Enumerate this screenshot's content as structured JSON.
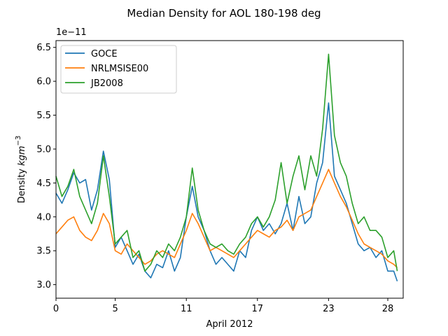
{
  "chart_data": {
    "type": "line",
    "title": "Median Density for AOL 180-198 deg",
    "xlabel": "April 2012",
    "ylabel": "Density",
    "ylabel_unit": "kgm",
    "ylabel_exp": "−3",
    "y_multiplier": "1e−11",
    "xlim": [
      0,
      29.3
    ],
    "ylim": [
      2.8,
      6.6
    ],
    "grid": false,
    "legend_position": "top-left",
    "x_ticks": [
      0,
      5,
      11,
      17,
      23,
      28
    ],
    "x_tick_labels": [
      "0",
      "5",
      "11",
      "17",
      "23",
      "28"
    ],
    "y_ticks": [
      3.0,
      3.5,
      4.0,
      4.5,
      5.0,
      5.5,
      6.0,
      6.5
    ],
    "y_tick_labels": [
      "3.0",
      "3.5",
      "4.0",
      "4.5",
      "5.0",
      "5.5",
      "6.0",
      "6.5"
    ],
    "series": [
      {
        "name": "GOCE",
        "color": "#1f77b4",
        "points": [
          [
            0,
            4.35
          ],
          [
            0.5,
            4.2
          ],
          [
            1,
            4.4
          ],
          [
            1.5,
            4.65
          ],
          [
            2,
            4.5
          ],
          [
            2.5,
            4.55
          ],
          [
            3,
            4.1
          ],
          [
            3.5,
            4.4
          ],
          [
            4.0,
            4.97
          ],
          [
            4.5,
            4.55
          ],
          [
            5.0,
            3.55
          ],
          [
            5.5,
            3.7
          ],
          [
            6.0,
            3.5
          ],
          [
            6.5,
            3.3
          ],
          [
            7,
            3.45
          ],
          [
            7.5,
            3.2
          ],
          [
            8,
            3.1
          ],
          [
            8.5,
            3.3
          ],
          [
            9,
            3.25
          ],
          [
            9.5,
            3.5
          ],
          [
            10,
            3.2
          ],
          [
            10.5,
            3.4
          ],
          [
            11,
            4.0
          ],
          [
            11.5,
            4.45
          ],
          [
            12,
            4.0
          ],
          [
            12.5,
            3.8
          ],
          [
            13,
            3.5
          ],
          [
            13.5,
            3.3
          ],
          [
            14,
            3.4
          ],
          [
            14.5,
            3.3
          ],
          [
            15,
            3.2
          ],
          [
            15.5,
            3.5
          ],
          [
            16,
            3.4
          ],
          [
            16.5,
            3.8
          ],
          [
            17,
            4.0
          ],
          [
            17.5,
            3.8
          ],
          [
            18,
            3.9
          ],
          [
            18.5,
            3.75
          ],
          [
            19,
            3.9
          ],
          [
            19.5,
            4.2
          ],
          [
            20,
            3.8
          ],
          [
            20.5,
            4.3
          ],
          [
            21,
            3.9
          ],
          [
            21.5,
            4.0
          ],
          [
            22,
            4.5
          ],
          [
            22.5,
            4.8
          ],
          [
            23,
            5.68
          ],
          [
            23.5,
            4.6
          ],
          [
            24,
            4.4
          ],
          [
            24.5,
            4.2
          ],
          [
            25,
            3.9
          ],
          [
            25.5,
            3.6
          ],
          [
            26,
            3.5
          ],
          [
            26.5,
            3.55
          ],
          [
            27,
            3.4
          ],
          [
            27.5,
            3.5
          ],
          [
            28,
            3.2
          ],
          [
            28.5,
            3.2
          ],
          [
            28.8,
            3.05
          ]
        ]
      },
      {
        "name": "NRLMSISE00",
        "color": "#ff7f0e",
        "points": [
          [
            0,
            3.75
          ],
          [
            0.5,
            3.85
          ],
          [
            1,
            3.95
          ],
          [
            1.5,
            4.0
          ],
          [
            2,
            3.8
          ],
          [
            2.5,
            3.7
          ],
          [
            3,
            3.65
          ],
          [
            3.5,
            3.8
          ],
          [
            4,
            4.05
          ],
          [
            4.5,
            3.9
          ],
          [
            5,
            3.5
          ],
          [
            5.5,
            3.45
          ],
          [
            6,
            3.6
          ],
          [
            6.5,
            3.5
          ],
          [
            7,
            3.4
          ],
          [
            7.5,
            3.3
          ],
          [
            8,
            3.35
          ],
          [
            8.5,
            3.45
          ],
          [
            9,
            3.5
          ],
          [
            9.5,
            3.45
          ],
          [
            10,
            3.4
          ],
          [
            10.5,
            3.6
          ],
          [
            11,
            3.8
          ],
          [
            11.5,
            4.05
          ],
          [
            12,
            3.9
          ],
          [
            12.5,
            3.7
          ],
          [
            13,
            3.5
          ],
          [
            13.5,
            3.55
          ],
          [
            14,
            3.5
          ],
          [
            14.5,
            3.45
          ],
          [
            15,
            3.4
          ],
          [
            15.5,
            3.5
          ],
          [
            16,
            3.6
          ],
          [
            16.5,
            3.7
          ],
          [
            17,
            3.8
          ],
          [
            17.5,
            3.75
          ],
          [
            18,
            3.7
          ],
          [
            18.5,
            3.8
          ],
          [
            19,
            3.85
          ],
          [
            19.5,
            3.95
          ],
          [
            20,
            3.8
          ],
          [
            20.5,
            4.0
          ],
          [
            21,
            4.05
          ],
          [
            21.5,
            4.1
          ],
          [
            22,
            4.3
          ],
          [
            22.5,
            4.5
          ],
          [
            23,
            4.7
          ],
          [
            23.5,
            4.5
          ],
          [
            24,
            4.3
          ],
          [
            24.5,
            4.15
          ],
          [
            25,
            3.95
          ],
          [
            25.5,
            3.75
          ],
          [
            26,
            3.6
          ],
          [
            26.5,
            3.55
          ],
          [
            27,
            3.5
          ],
          [
            27.5,
            3.45
          ],
          [
            28,
            3.35
          ],
          [
            28.5,
            3.3
          ],
          [
            28.8,
            3.25
          ]
        ]
      },
      {
        "name": "JB2008",
        "color": "#2ca02c",
        "points": [
          [
            0,
            4.6
          ],
          [
            0.5,
            4.3
          ],
          [
            1,
            4.45
          ],
          [
            1.5,
            4.7
          ],
          [
            2,
            4.3
          ],
          [
            2.5,
            4.1
          ],
          [
            3,
            3.9
          ],
          [
            3.5,
            4.2
          ],
          [
            4,
            4.9
          ],
          [
            4.5,
            4.3
          ],
          [
            5,
            3.6
          ],
          [
            5.5,
            3.7
          ],
          [
            6,
            3.8
          ],
          [
            6.5,
            3.4
          ],
          [
            7,
            3.5
          ],
          [
            7.5,
            3.2
          ],
          [
            8,
            3.3
          ],
          [
            8.5,
            3.5
          ],
          [
            9,
            3.4
          ],
          [
            9.5,
            3.6
          ],
          [
            10,
            3.5
          ],
          [
            10.5,
            3.7
          ],
          [
            11,
            4.0
          ],
          [
            11.5,
            4.72
          ],
          [
            12,
            4.1
          ],
          [
            12.5,
            3.8
          ],
          [
            13,
            3.6
          ],
          [
            13.5,
            3.55
          ],
          [
            14,
            3.6
          ],
          [
            14.5,
            3.5
          ],
          [
            15,
            3.45
          ],
          [
            15.5,
            3.6
          ],
          [
            16,
            3.7
          ],
          [
            16.5,
            3.9
          ],
          [
            17,
            4.0
          ],
          [
            17.5,
            3.85
          ],
          [
            18,
            4.0
          ],
          [
            18.5,
            4.25
          ],
          [
            19,
            4.8
          ],
          [
            19.5,
            4.2
          ],
          [
            20,
            4.6
          ],
          [
            20.5,
            4.9
          ],
          [
            21,
            4.4
          ],
          [
            21.5,
            4.9
          ],
          [
            22,
            4.6
          ],
          [
            22.5,
            5.3
          ],
          [
            23,
            6.4
          ],
          [
            23.5,
            5.2
          ],
          [
            24,
            4.8
          ],
          [
            24.5,
            4.6
          ],
          [
            25,
            4.2
          ],
          [
            25.5,
            3.9
          ],
          [
            26,
            4.0
          ],
          [
            26.5,
            3.8
          ],
          [
            27,
            3.8
          ],
          [
            27.5,
            3.7
          ],
          [
            28,
            3.4
          ],
          [
            28.5,
            3.5
          ],
          [
            28.8,
            3.2
          ]
        ]
      }
    ]
  }
}
